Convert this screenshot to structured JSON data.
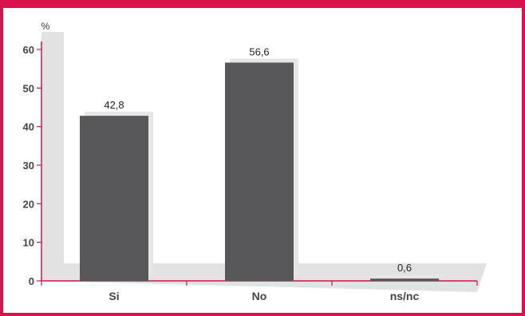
{
  "chart_data": {
    "type": "bar",
    "categories": [
      "Si",
      "No",
      "ns/nc"
    ],
    "values": [
      42.8,
      56.6,
      0.6
    ],
    "value_labels": [
      "42,8",
      "56,6",
      "0,6"
    ],
    "y_unit": "%",
    "ylim": [
      0,
      60
    ],
    "yticks": [
      0,
      10,
      20,
      30,
      40,
      50,
      60
    ],
    "grid": false,
    "colors": {
      "frame": "#d7134b",
      "bar": "#58585a",
      "bar_shadow": "#e6e6e6",
      "axis": "#d7134b",
      "floor": "#e2e2e2"
    }
  }
}
